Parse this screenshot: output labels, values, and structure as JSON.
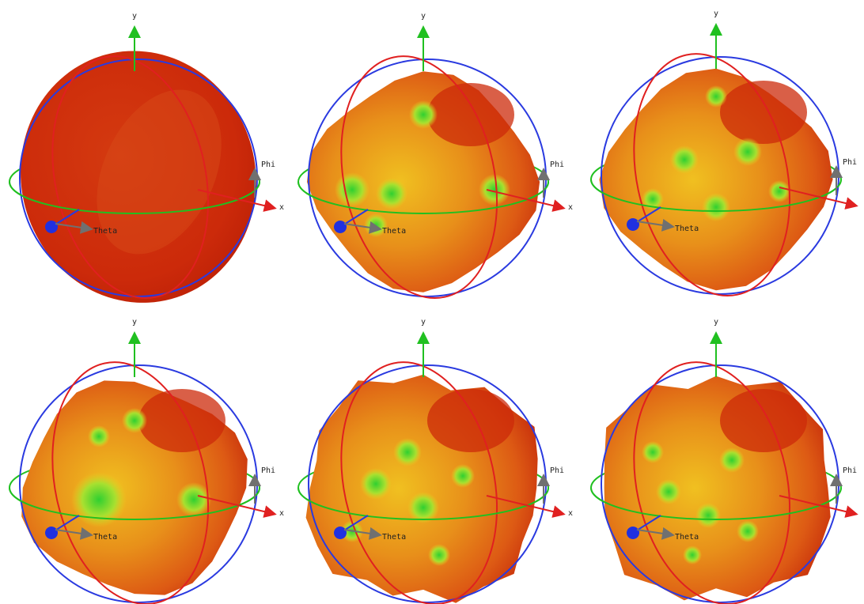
{
  "panels": [
    {
      "y": "y",
      "x": "x",
      "phi": "Phi",
      "theta": "Theta"
    },
    {
      "y": "y",
      "x": "x",
      "phi": "Phi",
      "theta": "Theta"
    },
    {
      "y": "y",
      "phi": "Phi",
      "theta": "Theta"
    },
    {
      "y": "y",
      "x": "x",
      "phi": "Phi",
      "theta": "Theta"
    },
    {
      "y": "y",
      "x": "x",
      "phi": "Phi",
      "theta": "Theta"
    },
    {
      "y": "y",
      "phi": "Phi",
      "theta": "Theta"
    }
  ]
}
